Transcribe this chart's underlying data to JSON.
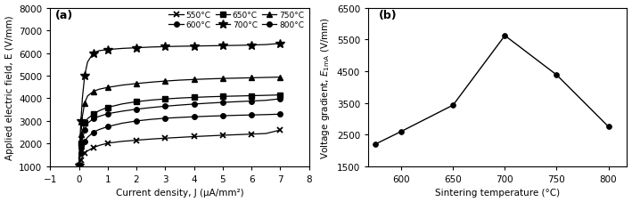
{
  "panel_a": {
    "title": "(a)",
    "xlabel": "Current density, J (μA/mm²)",
    "ylabel": "Applied electric field, E (V/mm)",
    "xlim": [
      -1,
      8
    ],
    "ylim": [
      1000,
      8000
    ],
    "yticks": [
      1000,
      2000,
      3000,
      4000,
      5000,
      6000,
      7000,
      8000
    ],
    "xticks": [
      -1,
      0,
      1,
      2,
      3,
      4,
      5,
      6,
      7,
      8
    ],
    "series": [
      {
        "label": "550°C",
        "marker": "x",
        "ms": 4.5,
        "mew": 1.3,
        "filled": false,
        "x": [
          0.0,
          0.03,
          0.07,
          0.12,
          0.2,
          0.3,
          0.5,
          0.7,
          1.0,
          1.5,
          2.0,
          2.5,
          3.0,
          3.5,
          4.0,
          4.5,
          5.0,
          5.5,
          6.0,
          6.5,
          7.0
        ],
        "y": [
          1050,
          1150,
          1280,
          1430,
          1580,
          1680,
          1820,
          1920,
          2020,
          2100,
          2150,
          2200,
          2240,
          2275,
          2310,
          2340,
          2370,
          2395,
          2420,
          2445,
          2600
        ]
      },
      {
        "label": "600°C",
        "marker": "o",
        "ms": 4,
        "mew": 1.0,
        "filled": true,
        "x": [
          0.0,
          0.03,
          0.07,
          0.12,
          0.2,
          0.3,
          0.5,
          0.7,
          1.0,
          1.5,
          2.0,
          2.5,
          3.0,
          3.5,
          4.0,
          4.5,
          5.0,
          5.5,
          6.0,
          6.5,
          7.0
        ],
        "y": [
          1050,
          1300,
          1600,
          1900,
          2100,
          2280,
          2500,
          2620,
          2750,
          2900,
          3000,
          3070,
          3120,
          3155,
          3185,
          3210,
          3230,
          3250,
          3265,
          3280,
          3300
        ]
      },
      {
        "label": "650°C",
        "marker": "s",
        "ms": 4,
        "mew": 1.0,
        "filled": true,
        "x": [
          0.0,
          0.03,
          0.07,
          0.12,
          0.2,
          0.3,
          0.5,
          0.7,
          1.0,
          1.5,
          2.0,
          2.5,
          3.0,
          3.5,
          4.0,
          4.5,
          5.0,
          5.5,
          6.0,
          6.5,
          7.0
        ],
        "y": [
          1050,
          1500,
          2000,
          2500,
          2900,
          3100,
          3300,
          3450,
          3600,
          3750,
          3850,
          3920,
          3970,
          4010,
          4040,
          4065,
          4085,
          4100,
          4115,
          4130,
          4150
        ]
      },
      {
        "label": "700°C",
        "marker": "*",
        "ms": 7,
        "mew": 1.0,
        "filled": true,
        "x": [
          0.0,
          0.03,
          0.07,
          0.12,
          0.2,
          0.3,
          0.5,
          0.7,
          1.0,
          1.5,
          2.0,
          2.5,
          3.0,
          3.5,
          4.0,
          4.5,
          5.0,
          5.5,
          6.0,
          6.5,
          7.0
        ],
        "y": [
          1050,
          2000,
          3000,
          4000,
          5000,
          5600,
          6000,
          6100,
          6150,
          6200,
          6230,
          6260,
          6280,
          6295,
          6305,
          6315,
          6325,
          6335,
          6350,
          6370,
          6420
        ]
      },
      {
        "label": "750°C",
        "marker": "^",
        "ms": 4.5,
        "mew": 1.0,
        "filled": true,
        "x": [
          0.0,
          0.03,
          0.07,
          0.12,
          0.2,
          0.3,
          0.5,
          0.7,
          1.0,
          1.5,
          2.0,
          2.5,
          3.0,
          3.5,
          4.0,
          4.5,
          5.0,
          5.5,
          6.0,
          6.5,
          7.0
        ],
        "y": [
          1050,
          1700,
          2400,
          3200,
          3800,
          4100,
          4300,
          4400,
          4480,
          4580,
          4650,
          4710,
          4760,
          4800,
          4830,
          4855,
          4875,
          4890,
          4905,
          4920,
          4935
        ]
      },
      {
        "label": "800°C",
        "marker": "o",
        "ms": 4,
        "mew": 1.0,
        "filled": true,
        "x": [
          0.0,
          0.03,
          0.07,
          0.12,
          0.2,
          0.3,
          0.5,
          0.7,
          1.0,
          1.5,
          2.0,
          2.5,
          3.0,
          3.5,
          4.0,
          4.5,
          5.0,
          5.5,
          6.0,
          6.5,
          7.0
        ],
        "y": [
          1050,
          1400,
          1800,
          2200,
          2600,
          2900,
          3100,
          3200,
          3320,
          3430,
          3520,
          3590,
          3650,
          3700,
          3745,
          3785,
          3820,
          3850,
          3880,
          3910,
          3980
        ]
      }
    ]
  },
  "panel_b": {
    "title": "(b)",
    "xlabel": "Sintering temperature (°C)",
    "ylabel": "Voltage gradient, $E_{1\\mathrm{mA}}$ (V/mm)",
    "xlim": [
      568,
      818
    ],
    "ylim": [
      1500,
      6500
    ],
    "yticks": [
      1500,
      2500,
      3500,
      4500,
      5500,
      6500
    ],
    "xticks": [
      600,
      650,
      700,
      750,
      800
    ],
    "x": [
      575,
      600,
      650,
      700,
      750,
      800
    ],
    "y": [
      2200,
      2600,
      3430,
      5620,
      4380,
      2750
    ]
  }
}
